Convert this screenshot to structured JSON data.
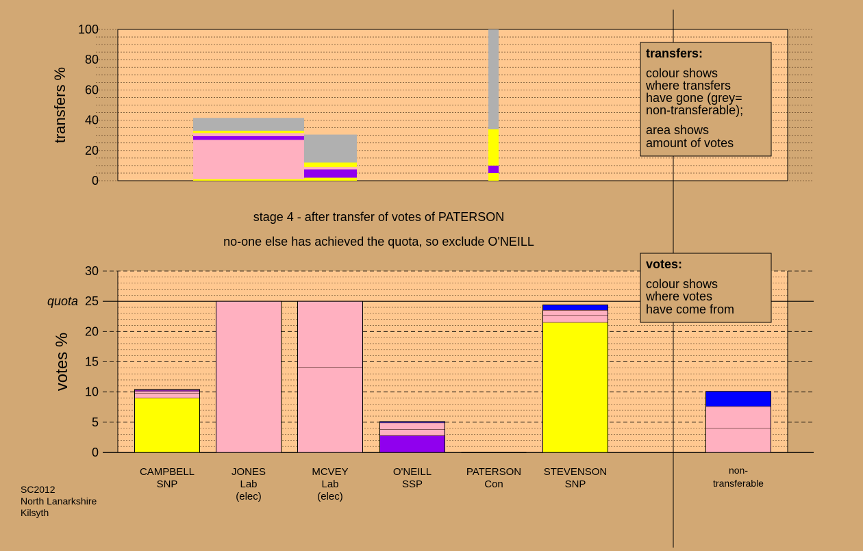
{
  "colors": {
    "background": "#d2a874",
    "plot_background": "#ffc890",
    "yellow": "#ffff00",
    "pink": "#ffb0c0",
    "purple": "#9000ee",
    "blue": "#0000ff",
    "grey": "#b0b0b0"
  },
  "stage_caption": "stage 4 - after transfer of votes of PATERSON",
  "result_caption": "no-one else has achieved the quota, so exclude O'NEILL",
  "footer": [
    "SC2012",
    "North Lanarkshire",
    "Kilsyth"
  ],
  "transfers_legend": {
    "title": "transfers:",
    "lines": [
      "colour shows",
      "where transfers",
      "have gone (grey=",
      "non-transferable);"
    ],
    "lines2": [
      "area shows",
      "amount of votes"
    ]
  },
  "votes_legend": {
    "title": "votes:",
    "lines": [
      "colour shows",
      "where votes",
      "have come from"
    ]
  },
  "chart_data": [
    {
      "type": "bar",
      "ylabel": "transfers %",
      "ylim": [
        0,
        100
      ],
      "yticks": [
        0,
        20,
        40,
        60,
        80,
        100
      ],
      "grid": true,
      "description_note": "stacked transfer destinations of transferred votes",
      "bars": [
        {
          "segments": [
            {
              "color": "yellow",
              "from": 0,
              "to": 1
            },
            {
              "color": "pink",
              "from": 1,
              "to": 27
            },
            {
              "color": "purple",
              "from": 27,
              "to": 29.5
            },
            {
              "color": "pink",
              "from": 29.5,
              "to": 31.5
            },
            {
              "color": "yellow",
              "from": 31.5,
              "to": 33
            },
            {
              "color": "grey",
              "from": 33,
              "to": 41.5
            }
          ]
        },
        {
          "segments": [
            {
              "color": "yellow",
              "from": 0,
              "to": 2
            },
            {
              "color": "purple",
              "from": 2,
              "to": 7.5
            },
            {
              "color": "pink",
              "from": 7.5,
              "to": 9
            },
            {
              "color": "yellow",
              "from": 9,
              "to": 12
            },
            {
              "color": "grey",
              "from": 12,
              "to": 30.5
            }
          ]
        },
        {
          "segments": [
            {
              "color": "yellow",
              "from": 0,
              "to": 5
            },
            {
              "color": "purple",
              "from": 5,
              "to": 10
            },
            {
              "color": "yellow",
              "from": 10,
              "to": 34
            },
            {
              "color": "grey",
              "from": 34,
              "to": 100
            }
          ]
        }
      ]
    },
    {
      "type": "bar",
      "ylabel": "votes %",
      "ylim": [
        0,
        30
      ],
      "yticks": [
        0,
        5,
        10,
        15,
        20,
        25,
        30
      ],
      "quota": 25,
      "quota_label": "quota",
      "grid": true,
      "candidates": [
        {
          "name": "CAMPBELL",
          "party": "SNP",
          "note": "",
          "segments": [
            {
              "color": "yellow",
              "from": 0,
              "to": 9
            },
            {
              "color": "pink",
              "from": 9,
              "to": 9.8
            },
            {
              "color": "pink",
              "from": 9.8,
              "to": 10.1
            },
            {
              "color": "purple",
              "from": 10.1,
              "to": 10.3
            },
            {
              "color": "blue",
              "from": 10.3,
              "to": 10.4
            }
          ],
          "total": 10.4
        },
        {
          "name": "JONES",
          "party": "Lab",
          "note": "(elec)",
          "segments": [
            {
              "color": "pink",
              "from": 0,
              "to": 25
            }
          ],
          "total": 25
        },
        {
          "name": "MCVEY",
          "party": "Lab",
          "note": "(elec)",
          "segments": [
            {
              "color": "pink",
              "from": 0,
              "to": 14.1
            },
            {
              "color": "pink",
              "from": 14.1,
              "to": 25
            }
          ],
          "total": 25
        },
        {
          "name": "O'NEILL",
          "party": "SSP",
          "note": "",
          "segments": [
            {
              "color": "purple",
              "from": 0,
              "to": 2.8
            },
            {
              "color": "pink",
              "from": 2.8,
              "to": 3.8
            },
            {
              "color": "pink",
              "from": 3.8,
              "to": 4.9
            },
            {
              "color": "blue",
              "from": 4.9,
              "to": 5.1
            }
          ],
          "total": 5.1
        },
        {
          "name": "PATERSON",
          "party": "Con",
          "note": "",
          "segments": [],
          "total": 0
        },
        {
          "name": "STEVENSON",
          "party": "SNP",
          "note": "",
          "segments": [
            {
              "color": "yellow",
              "from": 0,
              "to": 21.5
            },
            {
              "color": "pink",
              "from": 21.5,
              "to": 22.7
            },
            {
              "color": "pink",
              "from": 22.7,
              "to": 23.5
            },
            {
              "color": "blue",
              "from": 23.5,
              "to": 24.4
            }
          ],
          "total": 24.4
        }
      ],
      "non_transferable": {
        "label": [
          "non-",
          "transferable"
        ],
        "segments": [
          {
            "color": "pink",
            "from": 0,
            "to": 4
          },
          {
            "color": "pink",
            "from": 4,
            "to": 7.6
          },
          {
            "color": "blue",
            "from": 7.6,
            "to": 10.1
          }
        ],
        "total": 10.1
      }
    }
  ]
}
